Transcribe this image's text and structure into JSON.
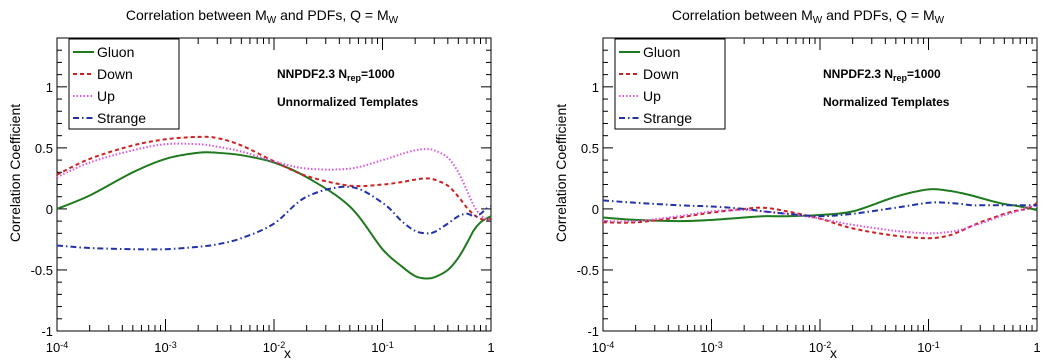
{
  "chart_data": [
    {
      "type": "line",
      "title": {
        "pre": "Correlation between M",
        "sub1": "W",
        "mid": " and PDFs, Q = M",
        "sub2": "W"
      },
      "xlabel": "x",
      "ylabel": "Correlation Coefficient",
      "xscale": "log",
      "xlim": [
        0.0001,
        1
      ],
      "ylim": [
        -1,
        1.4
      ],
      "x_ticks": [
        {
          "label": "10",
          "exp": "-4"
        },
        {
          "label": "10",
          "exp": "-3"
        },
        {
          "label": "10",
          "exp": "-2"
        },
        {
          "label": "10",
          "exp": "-1"
        },
        {
          "label": "1",
          "exp": ""
        }
      ],
      "y_ticks": [
        "-1",
        "-0.5",
        "0",
        "0.5",
        "1"
      ],
      "legend_position": "top-left",
      "annotation": {
        "line1": {
          "pre": "NNPDF2.3 N",
          "sub": "rep",
          "post": "=1000"
        },
        "line2": "Unnormalized Templates"
      },
      "x": [
        0.0001,
        0.0002,
        0.0005,
        0.001,
        0.002,
        0.003,
        0.005,
        0.01,
        0.02,
        0.05,
        0.1,
        0.15,
        0.2,
        0.25,
        0.3,
        0.4,
        0.5,
        0.6,
        0.7,
        0.8,
        0.9,
        1.0
      ],
      "series": [
        {
          "name": "Gluon",
          "color": "#1f7a1f",
          "dash": "solid",
          "values": [
            0.0,
            0.11,
            0.3,
            0.41,
            0.46,
            0.46,
            0.44,
            0.38,
            0.26,
            0.02,
            -0.33,
            -0.47,
            -0.55,
            -0.57,
            -0.56,
            -0.5,
            -0.4,
            -0.28,
            -0.17,
            -0.11,
            -0.08,
            -0.06
          ]
        },
        {
          "name": "Down",
          "color": "#cc2222",
          "dash": "dashed",
          "values": [
            0.28,
            0.41,
            0.52,
            0.57,
            0.59,
            0.58,
            0.52,
            0.39,
            0.27,
            0.19,
            0.2,
            0.22,
            0.24,
            0.25,
            0.24,
            0.19,
            0.1,
            0.01,
            -0.05,
            -0.08,
            -0.09,
            -0.08
          ]
        },
        {
          "name": "Up",
          "color": "#dd55dd",
          "dash": "dotted",
          "values": [
            0.26,
            0.38,
            0.48,
            0.53,
            0.53,
            0.51,
            0.47,
            0.39,
            0.33,
            0.33,
            0.4,
            0.45,
            0.48,
            0.49,
            0.48,
            0.42,
            0.3,
            0.15,
            0.02,
            -0.05,
            -0.08,
            -0.09
          ]
        },
        {
          "name": "Strange",
          "color": "#2233aa",
          "dash": "dashdot",
          "values": [
            -0.3,
            -0.32,
            -0.33,
            -0.33,
            -0.31,
            -0.29,
            -0.24,
            -0.12,
            0.1,
            0.18,
            0.05,
            -0.1,
            -0.18,
            -0.2,
            -0.19,
            -0.12,
            -0.06,
            -0.04,
            -0.06,
            -0.04,
            0.0,
            0.02
          ]
        }
      ]
    },
    {
      "type": "line",
      "title": {
        "pre": "Correlation between M",
        "sub1": "W",
        "mid": " and PDFs, Q = M",
        "sub2": "W"
      },
      "xlabel": "x",
      "ylabel": "Correlation Coefficient",
      "xscale": "log",
      "xlim": [
        0.0001,
        1
      ],
      "ylim": [
        -1,
        1.4
      ],
      "x_ticks": [
        {
          "label": "10",
          "exp": "-4"
        },
        {
          "label": "10",
          "exp": "-3"
        },
        {
          "label": "10",
          "exp": "-2"
        },
        {
          "label": "10",
          "exp": "-1"
        },
        {
          "label": "1",
          "exp": ""
        }
      ],
      "y_ticks": [
        "-1",
        "-0.5",
        "0",
        "0.5",
        "1"
      ],
      "legend_position": "top-left",
      "annotation": {
        "line1": {
          "pre": "NNPDF2.3 N",
          "sub": "rep",
          "post": "=1000"
        },
        "line2": "Normalized Templates"
      },
      "x": [
        0.0001,
        0.0002,
        0.0005,
        0.001,
        0.002,
        0.003,
        0.005,
        0.01,
        0.02,
        0.05,
        0.1,
        0.15,
        0.2,
        0.25,
        0.3,
        0.4,
        0.5,
        0.6,
        0.7,
        0.8,
        0.9,
        1.0
      ],
      "series": [
        {
          "name": "Gluon",
          "color": "#1f7a1f",
          "dash": "solid",
          "values": [
            -0.07,
            -0.09,
            -0.1,
            -0.09,
            -0.07,
            -0.06,
            -0.06,
            -0.05,
            -0.02,
            0.1,
            0.16,
            0.15,
            0.13,
            0.11,
            0.09,
            0.06,
            0.04,
            0.03,
            0.02,
            0.01,
            0.0,
            -0.01
          ]
        },
        {
          "name": "Down",
          "color": "#cc2222",
          "dash": "dashed",
          "values": [
            -0.11,
            -0.11,
            -0.07,
            -0.03,
            0.0,
            0.01,
            -0.02,
            -0.08,
            -0.16,
            -0.22,
            -0.24,
            -0.22,
            -0.18,
            -0.14,
            -0.11,
            -0.07,
            -0.04,
            -0.02,
            -0.01,
            0.0,
            0.02,
            0.05
          ]
        },
        {
          "name": "Up",
          "color": "#dd55dd",
          "dash": "dotted",
          "values": [
            -0.1,
            -0.1,
            -0.06,
            -0.02,
            -0.01,
            -0.02,
            -0.04,
            -0.08,
            -0.13,
            -0.18,
            -0.2,
            -0.19,
            -0.17,
            -0.14,
            -0.12,
            -0.08,
            -0.05,
            -0.03,
            -0.01,
            0.01,
            0.02,
            0.03
          ]
        },
        {
          "name": "Strange",
          "color": "#2233aa",
          "dash": "dashdot",
          "values": [
            0.07,
            0.05,
            0.03,
            0.02,
            0.0,
            -0.02,
            -0.04,
            -0.06,
            -0.04,
            0.01,
            0.05,
            0.05,
            0.04,
            0.03,
            0.03,
            0.03,
            0.03,
            0.03,
            0.03,
            0.03,
            0.03,
            0.03
          ]
        }
      ]
    }
  ]
}
